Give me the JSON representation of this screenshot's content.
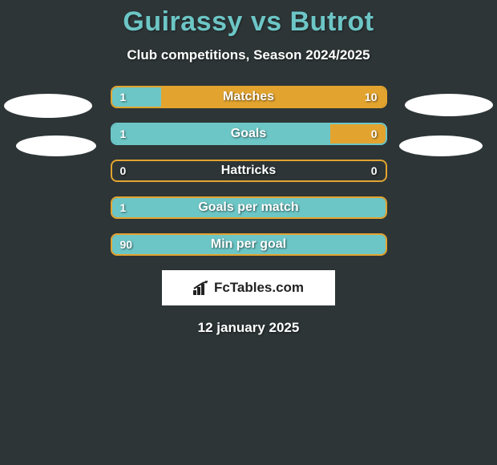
{
  "title": "Guirassy vs Butrot",
  "subtitle": "Club competitions, Season 2024/2025",
  "date": "12 january 2025",
  "logo_text": "FcTables.com",
  "colors": {
    "background": "#2d3537",
    "title": "#6dc6c6",
    "left_fill": "#6dc6c6",
    "right_fill": "#e3a42f",
    "border": "#e3a42f",
    "text": "#ffffff"
  },
  "stats": [
    {
      "label": "Matches",
      "left_val": "1",
      "right_val": "10",
      "left_pct": 18,
      "right_pct": 82,
      "border": "#e3a42f",
      "show_left": true,
      "show_right": true
    },
    {
      "label": "Goals",
      "left_val": "1",
      "right_val": "0",
      "left_pct": 80,
      "right_pct": 20,
      "border": "#6dc6c6",
      "show_left": true,
      "show_right": true
    },
    {
      "label": "Hattricks",
      "left_val": "0",
      "right_val": "0",
      "left_pct": 0,
      "right_pct": 0,
      "border": "#e3a42f",
      "show_left": true,
      "show_right": true
    },
    {
      "label": "Goals per match",
      "left_val": "1",
      "right_val": "",
      "left_pct": 100,
      "right_pct": 0,
      "border": "#e3a42f",
      "show_left": true,
      "show_right": false
    },
    {
      "label": "Min per goal",
      "left_val": "90",
      "right_val": "",
      "left_pct": 100,
      "right_pct": 0,
      "border": "#e3a42f",
      "show_left": true,
      "show_right": false
    }
  ]
}
